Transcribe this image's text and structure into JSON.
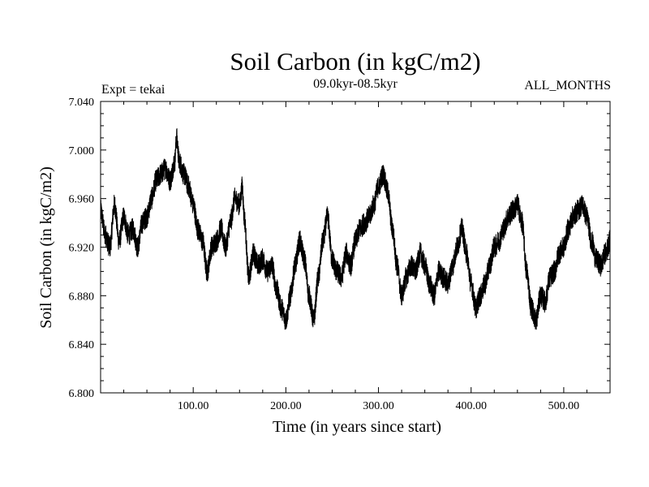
{
  "chart_data": {
    "type": "line",
    "title": "Soil Carbon (in kgC/m2)",
    "subtitle": "09.0kyr-08.5kyr",
    "left_note": "Expt = tekai",
    "right_note": "ALL_MONTHS",
    "xlabel": "Time (in years since start)",
    "ylabel": "Soil Carbon (in kgC/m2)",
    "xlim": [
      0,
      550
    ],
    "ylim": [
      6.8,
      7.04
    ],
    "x_ticks": [
      100,
      200,
      300,
      400,
      500
    ],
    "x_tick_labels": [
      "100.00",
      "200.00",
      "300.00",
      "400.00",
      "500.00"
    ],
    "y_ticks": [
      6.8,
      6.84,
      6.88,
      6.92,
      6.96,
      7.0,
      7.04
    ],
    "y_tick_labels": [
      "6.800",
      "6.840",
      "6.880",
      "6.920",
      "6.960",
      "7.000",
      "7.040"
    ],
    "series": [
      {
        "name": "Soil Carbon",
        "color": "#000000",
        "x": [
          0,
          5,
          10,
          15,
          20,
          25,
          30,
          35,
          40,
          45,
          50,
          55,
          60,
          65,
          70,
          75,
          80,
          82,
          85,
          90,
          95,
          100,
          105,
          110,
          115,
          120,
          125,
          130,
          135,
          140,
          145,
          150,
          153,
          155,
          160,
          165,
          170,
          175,
          180,
          185,
          190,
          195,
          200,
          205,
          210,
          215,
          220,
          225,
          230,
          235,
          240,
          245,
          250,
          255,
          260,
          265,
          270,
          275,
          280,
          285,
          290,
          295,
          300,
          305,
          310,
          315,
          320,
          325,
          330,
          335,
          340,
          345,
          350,
          355,
          360,
          365,
          370,
          375,
          380,
          385,
          390,
          395,
          400,
          405,
          410,
          415,
          420,
          425,
          430,
          435,
          440,
          445,
          450,
          455,
          460,
          465,
          470,
          475,
          480,
          485,
          490,
          495,
          500,
          505,
          510,
          515,
          520,
          525,
          530,
          535,
          540,
          545,
          550
        ],
        "values": [
          6.95,
          6.93,
          6.92,
          6.955,
          6.925,
          6.945,
          6.93,
          6.935,
          6.92,
          6.94,
          6.945,
          6.96,
          6.975,
          6.98,
          6.985,
          6.975,
          6.99,
          7.01,
          6.99,
          6.98,
          6.97,
          6.955,
          6.935,
          6.925,
          6.9,
          6.92,
          6.925,
          6.935,
          6.92,
          6.94,
          6.96,
          6.955,
          6.97,
          6.945,
          6.895,
          6.915,
          6.905,
          6.91,
          6.9,
          6.905,
          6.885,
          6.87,
          6.86,
          6.88,
          6.905,
          6.925,
          6.91,
          6.88,
          6.86,
          6.895,
          6.925,
          6.945,
          6.91,
          6.9,
          6.895,
          6.915,
          6.905,
          6.925,
          6.935,
          6.94,
          6.945,
          6.955,
          6.97,
          6.98,
          6.965,
          6.935,
          6.905,
          6.88,
          6.895,
          6.905,
          6.9,
          6.915,
          6.905,
          6.89,
          6.88,
          6.9,
          6.895,
          6.89,
          6.905,
          6.92,
          6.935,
          6.915,
          6.89,
          6.87,
          6.88,
          6.89,
          6.905,
          6.92,
          6.925,
          6.935,
          6.945,
          6.95,
          6.955,
          6.94,
          6.9,
          6.87,
          6.86,
          6.88,
          6.875,
          6.895,
          6.9,
          6.915,
          6.92,
          6.935,
          6.945,
          6.95,
          6.955,
          6.945,
          6.925,
          6.91,
          6.905,
          6.915,
          6.925
        ]
      }
    ]
  }
}
